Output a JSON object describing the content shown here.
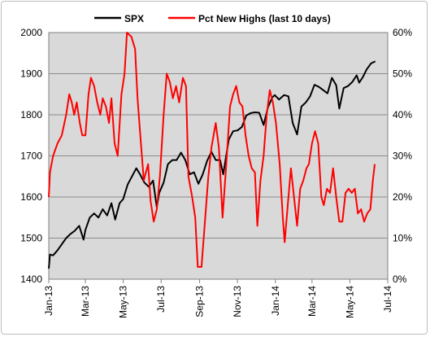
{
  "chart_data": {
    "type": "line",
    "legend": {
      "placement": "top-center"
    },
    "grid": true,
    "x_axis": {
      "ticks": [
        "Jan-13",
        "Mar-13",
        "May-13",
        "Jul-13",
        "Sep-13",
        "Nov-13",
        "Jan-14",
        "Mar-14",
        "May-14",
        "Jul-14"
      ],
      "range": [
        "2013-01-01",
        "2014-07-01"
      ]
    },
    "y_left": {
      "range": [
        1400,
        2000
      ],
      "ticks": [
        "1400",
        "1500",
        "1600",
        "1700",
        "1800",
        "1900",
        "2000"
      ]
    },
    "y_right": {
      "range": [
        0,
        60
      ],
      "ticks": [
        "0%",
        "10%",
        "20%",
        "30%",
        "40%",
        "50%",
        "60%"
      ]
    },
    "series": [
      {
        "name": "SPX",
        "color": "#000000",
        "axis": "left",
        "points": [
          [
            "2013-01-01",
            1426
          ],
          [
            "2013-01-03",
            1460
          ],
          [
            "2013-01-08",
            1458
          ],
          [
            "2013-01-15",
            1470
          ],
          [
            "2013-01-22",
            1485
          ],
          [
            "2013-01-29",
            1500
          ],
          [
            "2013-02-05",
            1510
          ],
          [
            "2013-02-12",
            1518
          ],
          [
            "2013-02-19",
            1530
          ],
          [
            "2013-02-26",
            1496
          ],
          [
            "2013-03-01",
            1520
          ],
          [
            "2013-03-08",
            1550
          ],
          [
            "2013-03-15",
            1560
          ],
          [
            "2013-03-22",
            1550
          ],
          [
            "2013-03-29",
            1570
          ],
          [
            "2013-04-05",
            1555
          ],
          [
            "2013-04-12",
            1585
          ],
          [
            "2013-04-18",
            1545
          ],
          [
            "2013-04-25",
            1585
          ],
          [
            "2013-05-01",
            1595
          ],
          [
            "2013-05-08",
            1630
          ],
          [
            "2013-05-15",
            1650
          ],
          [
            "2013-05-22",
            1670
          ],
          [
            "2013-05-28",
            1655
          ],
          [
            "2013-06-04",
            1635
          ],
          [
            "2013-06-11",
            1625
          ],
          [
            "2013-06-18",
            1640
          ],
          [
            "2013-06-24",
            1575
          ],
          [
            "2013-06-28",
            1610
          ],
          [
            "2013-07-05",
            1635
          ],
          [
            "2013-07-12",
            1680
          ],
          [
            "2013-07-19",
            1690
          ],
          [
            "2013-07-26",
            1690
          ],
          [
            "2013-08-02",
            1708
          ],
          [
            "2013-08-09",
            1690
          ],
          [
            "2013-08-16",
            1655
          ],
          [
            "2013-08-23",
            1660
          ],
          [
            "2013-08-30",
            1632
          ],
          [
            "2013-09-06",
            1655
          ],
          [
            "2013-09-13",
            1688
          ],
          [
            "2013-09-20",
            1710
          ],
          [
            "2013-09-27",
            1690
          ],
          [
            "2013-10-04",
            1690
          ],
          [
            "2013-10-09",
            1655
          ],
          [
            "2013-10-18",
            1740
          ],
          [
            "2013-10-25",
            1760
          ],
          [
            "2013-11-01",
            1762
          ],
          [
            "2013-11-08",
            1770
          ],
          [
            "2013-11-15",
            1798
          ],
          [
            "2013-11-22",
            1804
          ],
          [
            "2013-11-29",
            1806
          ],
          [
            "2013-12-06",
            1805
          ],
          [
            "2013-12-13",
            1775
          ],
          [
            "2013-12-20",
            1818
          ],
          [
            "2013-12-27",
            1842
          ],
          [
            "2013-12-31",
            1848
          ],
          [
            "2014-01-07",
            1837
          ],
          [
            "2014-01-15",
            1848
          ],
          [
            "2014-01-22",
            1845
          ],
          [
            "2014-01-29",
            1780
          ],
          [
            "2014-02-05",
            1752
          ],
          [
            "2014-02-12",
            1820
          ],
          [
            "2014-02-19",
            1830
          ],
          [
            "2014-02-26",
            1845
          ],
          [
            "2014-03-05",
            1873
          ],
          [
            "2014-03-12",
            1868
          ],
          [
            "2014-03-19",
            1860
          ],
          [
            "2014-03-26",
            1852
          ],
          [
            "2014-04-02",
            1890
          ],
          [
            "2014-04-09",
            1872
          ],
          [
            "2014-04-14",
            1815
          ],
          [
            "2014-04-21",
            1865
          ],
          [
            "2014-04-28",
            1870
          ],
          [
            "2014-05-05",
            1880
          ],
          [
            "2014-05-12",
            1896
          ],
          [
            "2014-05-16",
            1878
          ],
          [
            "2014-05-22",
            1892
          ],
          [
            "2014-05-28",
            1910
          ],
          [
            "2014-06-04",
            1925
          ],
          [
            "2014-06-11",
            1930
          ]
        ]
      },
      {
        "name": "Pct New Highs (last 10 days)",
        "color": "#ff0000",
        "axis": "right",
        "points": [
          [
            "2013-01-01",
            20
          ],
          [
            "2013-01-03",
            26
          ],
          [
            "2013-01-08",
            30
          ],
          [
            "2013-01-15",
            33
          ],
          [
            "2013-01-22",
            35
          ],
          [
            "2013-01-29",
            40
          ],
          [
            "2013-02-03",
            45
          ],
          [
            "2013-02-07",
            43
          ],
          [
            "2013-02-11",
            40
          ],
          [
            "2013-02-15",
            43
          ],
          [
            "2013-02-20",
            38
          ],
          [
            "2013-02-24",
            35
          ],
          [
            "2013-03-01",
            35
          ],
          [
            "2013-03-06",
            45
          ],
          [
            "2013-03-10",
            49
          ],
          [
            "2013-03-15",
            47
          ],
          [
            "2013-03-20",
            43
          ],
          [
            "2013-03-25",
            40
          ],
          [
            "2013-03-29",
            44
          ],
          [
            "2013-04-03",
            42
          ],
          [
            "2013-04-08",
            38
          ],
          [
            "2013-04-12",
            44
          ],
          [
            "2013-04-17",
            33
          ],
          [
            "2013-04-22",
            30
          ],
          [
            "2013-04-28",
            45
          ],
          [
            "2013-05-03",
            50
          ],
          [
            "2013-05-07",
            60
          ],
          [
            "2013-05-14",
            59
          ],
          [
            "2013-05-20",
            56
          ],
          [
            "2013-05-24",
            44
          ],
          [
            "2013-05-29",
            34
          ],
          [
            "2013-06-03",
            24
          ],
          [
            "2013-06-10",
            28
          ],
          [
            "2013-06-14",
            19
          ],
          [
            "2013-06-19",
            14
          ],
          [
            "2013-06-24",
            17
          ],
          [
            "2013-06-29",
            25
          ],
          [
            "2013-07-05",
            40
          ],
          [
            "2013-07-10",
            50
          ],
          [
            "2013-07-15",
            48
          ],
          [
            "2013-07-20",
            44
          ],
          [
            "2013-07-25",
            47
          ],
          [
            "2013-07-30",
            43
          ],
          [
            "2013-08-05",
            49
          ],
          [
            "2013-08-10",
            47
          ],
          [
            "2013-08-14",
            25
          ],
          [
            "2013-08-20",
            20
          ],
          [
            "2013-08-25",
            15
          ],
          [
            "2013-08-29",
            3
          ],
          [
            "2013-09-04",
            3
          ],
          [
            "2013-09-10",
            15
          ],
          [
            "2013-09-15",
            25
          ],
          [
            "2013-09-20",
            32
          ],
          [
            "2013-09-27",
            38
          ],
          [
            "2013-10-02",
            32
          ],
          [
            "2013-10-08",
            15
          ],
          [
            "2013-10-14",
            28
          ],
          [
            "2013-10-20",
            42
          ],
          [
            "2013-10-25",
            45
          ],
          [
            "2013-10-30",
            47
          ],
          [
            "2013-11-04",
            43
          ],
          [
            "2013-11-09",
            42
          ],
          [
            "2013-11-14",
            35
          ],
          [
            "2013-11-19",
            30
          ],
          [
            "2013-11-24",
            27
          ],
          [
            "2013-11-29",
            26
          ],
          [
            "2013-12-03",
            13
          ],
          [
            "2013-12-08",
            24
          ],
          [
            "2013-12-13",
            30
          ],
          [
            "2013-12-18",
            40
          ],
          [
            "2013-12-23",
            46
          ],
          [
            "2013-12-28",
            43
          ],
          [
            "2014-01-02",
            38
          ],
          [
            "2014-01-08",
            28
          ],
          [
            "2014-01-13",
            15
          ],
          [
            "2014-01-16",
            9
          ],
          [
            "2014-01-21",
            18
          ],
          [
            "2014-01-26",
            27
          ],
          [
            "2014-01-31",
            20
          ],
          [
            "2014-02-05",
            13
          ],
          [
            "2014-02-10",
            22
          ],
          [
            "2014-02-15",
            24
          ],
          [
            "2014-02-20",
            27
          ],
          [
            "2014-02-24",
            28
          ],
          [
            "2014-03-01",
            33
          ],
          [
            "2014-03-06",
            36
          ],
          [
            "2014-03-11",
            33
          ],
          [
            "2014-03-16",
            20
          ],
          [
            "2014-03-20",
            18
          ],
          [
            "2014-03-25",
            22
          ],
          [
            "2014-03-30",
            21
          ],
          [
            "2014-04-04",
            27
          ],
          [
            "2014-04-09",
            20
          ],
          [
            "2014-04-14",
            14
          ],
          [
            "2014-04-19",
            14
          ],
          [
            "2014-04-24",
            21
          ],
          [
            "2014-04-29",
            22
          ],
          [
            "2014-05-04",
            21
          ],
          [
            "2014-05-09",
            22
          ],
          [
            "2014-05-14",
            16
          ],
          [
            "2014-05-19",
            17
          ],
          [
            "2014-05-24",
            14
          ],
          [
            "2014-05-29",
            16
          ],
          [
            "2014-06-03",
            17
          ],
          [
            "2014-06-07",
            24
          ],
          [
            "2014-06-10",
            28
          ]
        ]
      }
    ]
  }
}
